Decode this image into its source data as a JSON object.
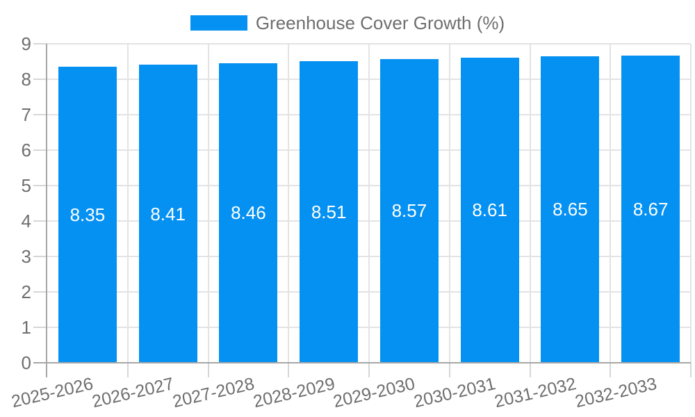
{
  "legend": {
    "items": [
      {
        "label": "Greenhouse Cover Growth (%)",
        "color": "#0591f2"
      }
    ]
  },
  "chart_data": {
    "type": "bar",
    "title": "",
    "xlabel": "",
    "ylabel": "",
    "categories": [
      "2025-2026",
      "2026-2027",
      "2027-2028",
      "2028-2029",
      "2029-2030",
      "2030-2031",
      "2031-2032",
      "2032-2033"
    ],
    "values": [
      8.35,
      8.41,
      8.46,
      8.51,
      8.57,
      8.61,
      8.65,
      8.67
    ],
    "value_labels": [
      "8.35",
      "8.41",
      "8.46",
      "8.51",
      "8.57",
      "8.61",
      "8.65",
      "8.67"
    ],
    "series_name": "Greenhouse Cover Growth (%)",
    "ylim": [
      0,
      9
    ],
    "y_ticks": [
      0,
      1,
      2,
      3,
      4,
      5,
      6,
      7,
      8,
      9
    ],
    "grid": true,
    "legend_position": "top",
    "bar_color": "#0591f2",
    "value_label_color": "#ffffff"
  },
  "colors": {
    "bar": "#0591f2",
    "grid": "#e3e3e3",
    "axis": "#a6a6a6",
    "tick": "#d6d6d6",
    "text": "#6e6e6e",
    "background": "#ffffff"
  }
}
